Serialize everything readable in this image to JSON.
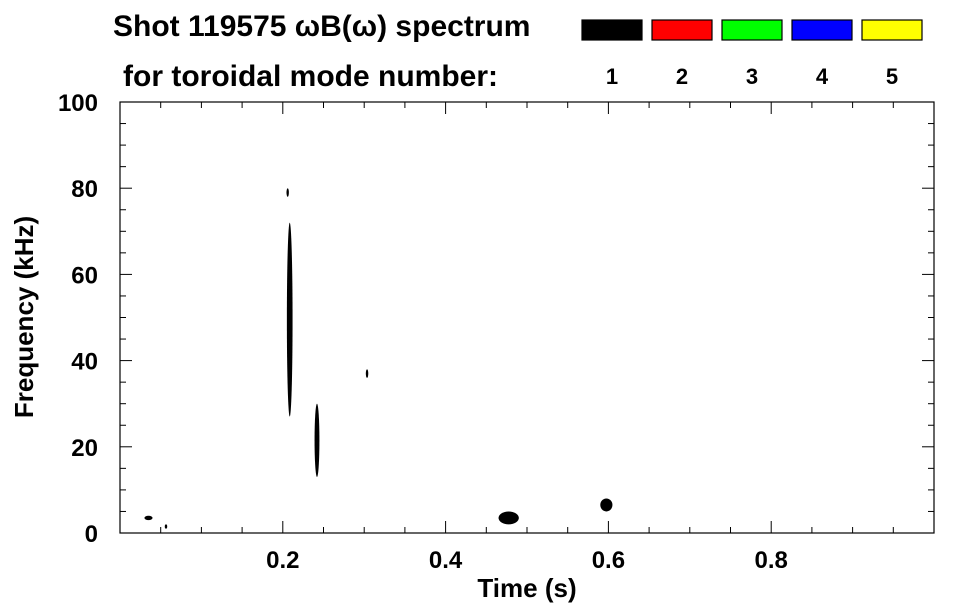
{
  "chart_data": {
    "type": "heatmap",
    "title_line1": "Shot 119575 ωB(ω) spectrum",
    "title_line2": "for toroidal mode number:",
    "legend": [
      {
        "label": "1",
        "color": "#000000"
      },
      {
        "label": "2",
        "color": "#ff0000"
      },
      {
        "label": "3",
        "color": "#00ff00"
      },
      {
        "label": "4",
        "color": "#0000ff"
      },
      {
        "label": "5",
        "color": "#ffff00"
      }
    ],
    "xlabel": "Time (s)",
    "ylabel": "Frequency (kHz)",
    "xlim": [
      0.0,
      1.0
    ],
    "ylim": [
      0,
      100
    ],
    "x_ticks": [
      {
        "value": 0.2,
        "label": "0.2"
      },
      {
        "value": 0.4,
        "label": "0.4"
      },
      {
        "value": 0.6,
        "label": "0.6"
      },
      {
        "value": 0.8,
        "label": "0.8"
      }
    ],
    "y_ticks": [
      {
        "value": 0,
        "label": "0"
      },
      {
        "value": 20,
        "label": "20"
      },
      {
        "value": 40,
        "label": "40"
      },
      {
        "value": 60,
        "label": "60"
      },
      {
        "value": 80,
        "label": "80"
      },
      {
        "value": 100,
        "label": "100"
      }
    ],
    "grid": false,
    "features": [
      {
        "mode": "1",
        "t_start": 0.205,
        "t_end": 0.212,
        "f_low": 27,
        "f_high": 72,
        "kind": "streak"
      },
      {
        "mode": "1",
        "t_start": 0.205,
        "t_end": 0.207,
        "f_low": 78,
        "f_high": 80,
        "kind": "blob"
      },
      {
        "mode": "1",
        "t_start": 0.239,
        "t_end": 0.245,
        "f_low": 13,
        "f_high": 30,
        "kind": "streak"
      },
      {
        "mode": "1",
        "t_start": 0.302,
        "t_end": 0.305,
        "f_low": 36,
        "f_high": 38,
        "kind": "blob"
      },
      {
        "mode": "1",
        "t_start": 0.465,
        "t_end": 0.49,
        "f_low": 2,
        "f_high": 5,
        "kind": "blob"
      },
      {
        "mode": "1",
        "t_start": 0.59,
        "t_end": 0.605,
        "f_low": 5,
        "f_high": 8,
        "kind": "blob"
      },
      {
        "mode": "1",
        "t_start": 0.03,
        "t_end": 0.04,
        "f_low": 3,
        "f_high": 4,
        "kind": "blob"
      },
      {
        "mode": "1",
        "t_start": 0.055,
        "t_end": 0.058,
        "f_low": 1,
        "f_high": 2,
        "kind": "blob"
      }
    ]
  }
}
